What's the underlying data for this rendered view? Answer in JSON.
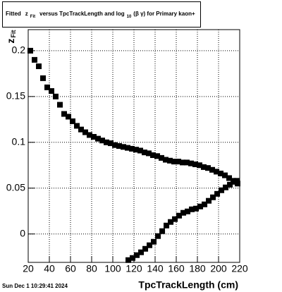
{
  "chart_data": {
    "type": "scatter",
    "title": [
      "Fitted",
      "z",
      "Fit",
      "versus TpcTrackLength and log",
      "10",
      "(β  γ) for Primary kaon+"
    ],
    "x_label": "TpcTrackLength (cm)",
    "y_label": [
      "z",
      "Fit"
    ],
    "footer": "Sun Dec  1 10:29:41 2024",
    "xlim": [
      20,
      220
    ],
    "xticks": [
      20,
      40,
      60,
      80,
      100,
      120,
      140,
      160,
      180,
      200,
      220
    ],
    "ylim": [
      -0.031,
      0.223
    ],
    "yticks": [
      0,
      0.05,
      0.1,
      0.15,
      0.2
    ],
    "grid": true,
    "series": [
      {
        "color": "#000000",
        "x": [
          22,
          26,
          30,
          34,
          38,
          42,
          46,
          50,
          54,
          58,
          62,
          66,
          70,
          74,
          78,
          82,
          86,
          90,
          94,
          98,
          102,
          106,
          110,
          114,
          118,
          122,
          126,
          130,
          134,
          138,
          142,
          146,
          150,
          154,
          158,
          162,
          166,
          170,
          174,
          178,
          182,
          186,
          190,
          194,
          198,
          202,
          206,
          210,
          214,
          218
        ],
        "values": [
          0.2,
          0.19,
          0.183,
          0.17,
          0.16,
          0.156,
          0.15,
          0.141,
          0.131,
          0.128,
          0.123,
          0.118,
          0.114,
          0.111,
          0.108,
          0.106,
          0.104,
          0.102,
          0.1,
          0.099,
          0.097,
          0.096,
          0.095,
          0.094,
          0.093,
          0.092,
          0.091,
          0.089,
          0.088,
          0.086,
          0.085,
          0.083,
          0.081,
          0.08,
          0.079,
          0.079,
          0.078,
          0.078,
          0.077,
          0.076,
          0.075,
          0.073,
          0.072,
          0.07,
          0.068,
          0.066,
          0.064,
          0.061,
          0.058,
          0.055
        ]
      },
      {
        "color": "#000000",
        "x": [
          114.7,
          118.7,
          122.7,
          126.7,
          130.7,
          134.7,
          138.7,
          142.7,
          146.7,
          150.7,
          154.7,
          158.7,
          162.7,
          166.7,
          170.7,
          174.7,
          178.7,
          182.7,
          186.7,
          190.7,
          194.7,
          198.7,
          202.7,
          206.7,
          210.7,
          214.7,
          217.3
        ],
        "values": [
          -0.0285,
          -0.0262,
          -0.0231,
          -0.02,
          -0.0162,
          -0.0123,
          -0.0085,
          -0.0023,
          0.0031,
          0.0092,
          0.0131,
          0.0162,
          0.02,
          0.0231,
          0.0246,
          0.0269,
          0.0277,
          0.03,
          0.0323,
          0.0362,
          0.04,
          0.0438,
          0.0477,
          0.0508,
          0.0538,
          0.0569,
          0.058
        ]
      }
    ]
  }
}
